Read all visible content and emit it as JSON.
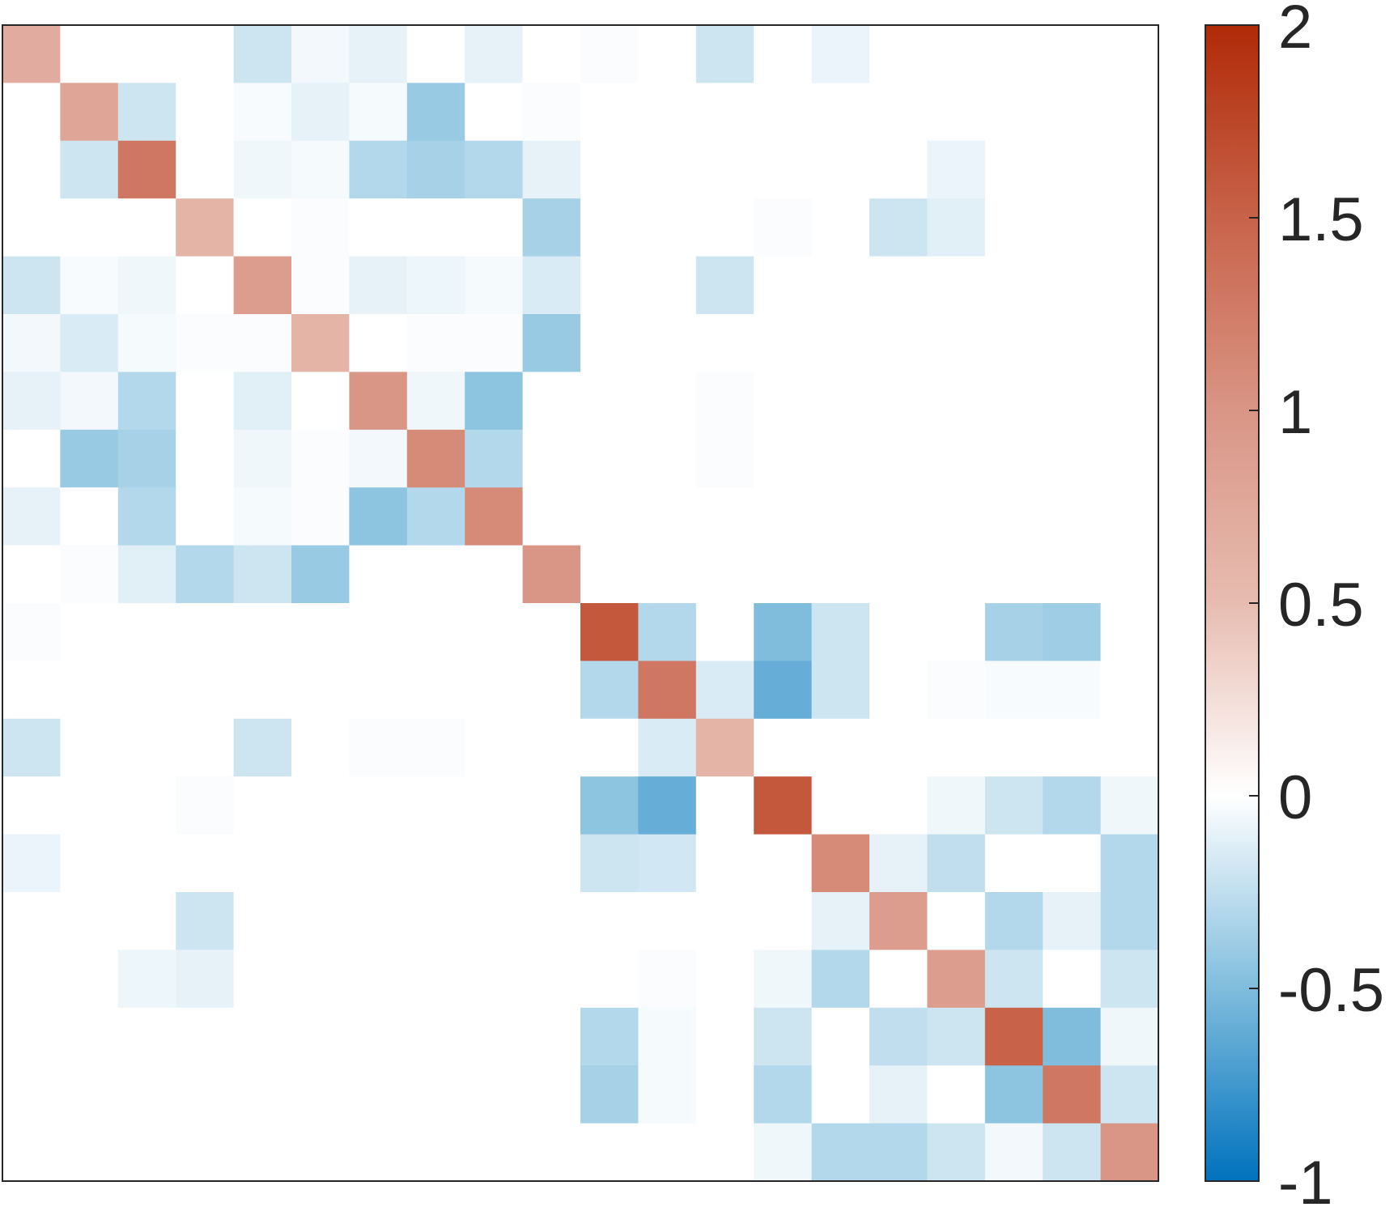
{
  "chart_data": {
    "type": "heatmap",
    "title": "",
    "xlabel": "",
    "ylabel": "",
    "rows": 20,
    "cols": 20,
    "grid": false,
    "axis_ticks_shown": false,
    "color_scale": {
      "min": -1,
      "max": 2,
      "colors": [
        {
          "value": -1,
          "color": "#0072bd"
        },
        {
          "value": -0.5,
          "color": "#80bddd"
        },
        {
          "value": 0,
          "color": "#ffffff"
        },
        {
          "value": 0.5,
          "color": "#e7bcb0"
        },
        {
          "value": 1,
          "color": "#d99585"
        },
        {
          "value": 1.5,
          "color": "#c8634a"
        },
        {
          "value": 2,
          "color": "#b02a07"
        }
      ],
      "ticks": [
        -1,
        -0.5,
        0,
        0.5,
        1,
        1.5,
        2
      ],
      "tick_labels": [
        "-1",
        "-0.5",
        "0",
        "0.5",
        "1",
        "1.5",
        "2"
      ],
      "position": "right"
    },
    "values": [
      [
        0.7,
        0,
        0,
        0,
        -0.2,
        -0.05,
        -0.1,
        0,
        -0.1,
        0,
        -0.02,
        0,
        -0.2,
        0,
        -0.08,
        0,
        0,
        0,
        0,
        0
      ],
      [
        0,
        0.8,
        -0.2,
        0,
        -0.03,
        -0.1,
        -0.04,
        -0.4,
        0,
        -0.02,
        0,
        0,
        0,
        0,
        0,
        0,
        0,
        0,
        0,
        0
      ],
      [
        0,
        -0.2,
        1.3,
        0,
        -0.06,
        -0.04,
        -0.3,
        -0.35,
        -0.3,
        -0.1,
        0,
        0,
        0,
        0,
        0,
        0,
        -0.08,
        0,
        0,
        0
      ],
      [
        0,
        0,
        0,
        0.6,
        0,
        -0.02,
        0,
        0,
        0,
        -0.35,
        0,
        0,
        0,
        -0.02,
        0,
        -0.2,
        -0.12,
        0,
        0,
        0
      ],
      [
        -0.2,
        -0.03,
        -0.06,
        0,
        0.9,
        -0.02,
        -0.1,
        -0.07,
        -0.04,
        -0.15,
        0,
        0,
        -0.2,
        0,
        0,
        0,
        0,
        0,
        0,
        0
      ],
      [
        -0.05,
        -0.15,
        -0.04,
        -0.02,
        -0.02,
        0.6,
        0,
        -0.02,
        -0.02,
        -0.4,
        0,
        0,
        0,
        0,
        0,
        0,
        0,
        0,
        0,
        0
      ],
      [
        -0.1,
        -0.05,
        -0.3,
        0,
        -0.12,
        0,
        1.0,
        -0.06,
        -0.45,
        0,
        0,
        0,
        -0.02,
        0,
        0,
        0,
        0,
        0,
        0,
        0
      ],
      [
        0,
        -0.4,
        -0.35,
        0,
        -0.06,
        -0.02,
        -0.05,
        1.1,
        -0.3,
        0,
        0,
        0,
        -0.02,
        0,
        0,
        0,
        0,
        0,
        0,
        0
      ],
      [
        -0.1,
        0,
        -0.3,
        0,
        -0.04,
        -0.02,
        -0.45,
        -0.3,
        1.1,
        0,
        0,
        0,
        0,
        0,
        0,
        0,
        0,
        0,
        0,
        0
      ],
      [
        0,
        -0.02,
        -0.12,
        -0.3,
        -0.2,
        -0.4,
        0,
        0,
        0,
        1.0,
        0,
        0,
        0,
        0,
        0,
        0,
        0,
        0,
        0,
        0
      ],
      [
        -0.02,
        0,
        0,
        0,
        0,
        0,
        0,
        0,
        0,
        0,
        1.6,
        -0.3,
        0,
        -0.5,
        -0.2,
        0,
        0,
        -0.35,
        -0.38,
        0
      ],
      [
        0,
        0,
        0,
        0,
        0,
        0,
        0,
        0,
        0,
        0,
        -0.3,
        1.3,
        -0.15,
        -0.6,
        -0.2,
        0,
        -0.02,
        -0.03,
        -0.03,
        0
      ],
      [
        -0.2,
        0,
        0,
        0,
        -0.2,
        0,
        -0.02,
        -0.02,
        0,
        0,
        0,
        -0.15,
        0.6,
        0,
        0,
        0,
        0,
        0,
        0,
        0
      ],
      [
        0,
        0,
        0,
        -0.02,
        0,
        0,
        0,
        0,
        0,
        0,
        -0.45,
        -0.6,
        0,
        1.6,
        0,
        0,
        -0.06,
        -0.2,
        -0.3,
        -0.06
      ],
      [
        -0.08,
        0,
        0,
        0,
        0,
        0,
        0,
        0,
        0,
        0,
        -0.2,
        -0.18,
        0,
        0,
        1.1,
        -0.1,
        -0.25,
        0,
        0,
        -0.3
      ],
      [
        0,
        0,
        0,
        -0.2,
        0,
        0,
        0,
        0,
        0,
        0,
        0,
        0,
        0,
        0,
        -0.1,
        0.9,
        0,
        -0.3,
        -0.1,
        -0.3
      ],
      [
        0,
        0,
        -0.07,
        -0.1,
        0,
        0,
        0,
        0,
        0,
        0,
        0,
        -0.02,
        0,
        -0.06,
        -0.3,
        0,
        0.9,
        -0.2,
        0,
        -0.2
      ],
      [
        0,
        0,
        0,
        0,
        0,
        0,
        0,
        0,
        0,
        0,
        -0.3,
        -0.04,
        0,
        -0.2,
        0,
        -0.25,
        -0.2,
        1.5,
        -0.5,
        -0.06
      ],
      [
        0,
        0,
        0,
        0,
        0,
        0,
        0,
        0,
        0,
        0,
        -0.35,
        -0.04,
        0,
        -0.3,
        0,
        -0.1,
        0,
        -0.45,
        1.3,
        -0.2
      ],
      [
        0,
        0,
        0,
        0,
        0,
        0,
        0,
        0,
        0,
        0,
        0,
        0,
        0,
        -0.06,
        -0.3,
        -0.3,
        -0.2,
        -0.05,
        -0.2,
        1.0
      ]
    ]
  }
}
